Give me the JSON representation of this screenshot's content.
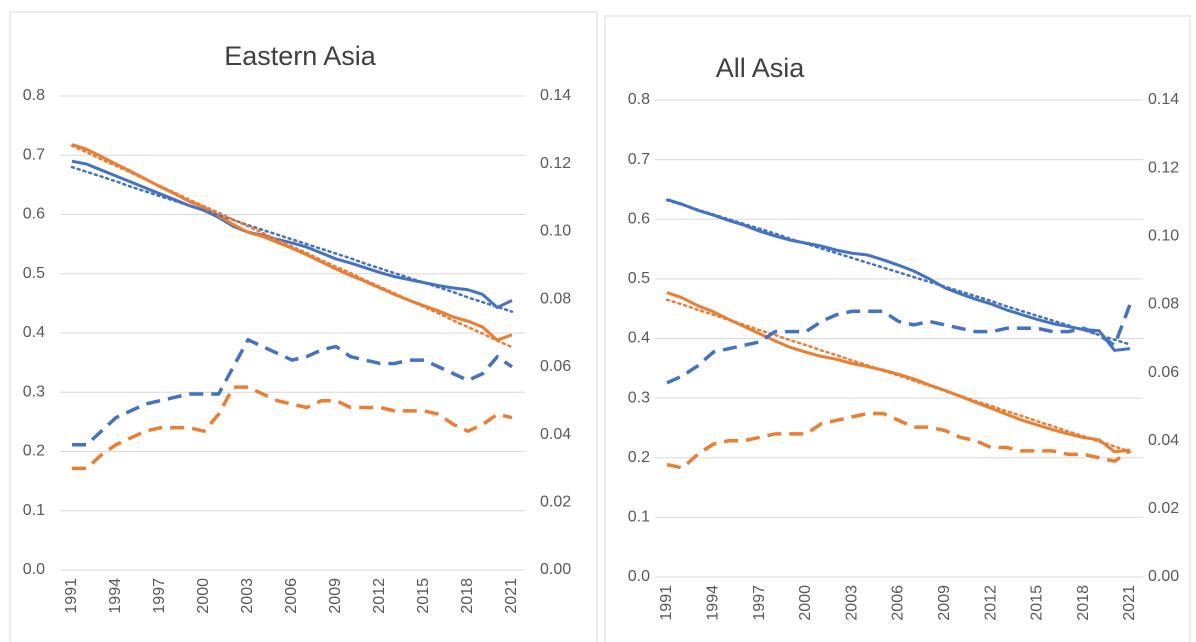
{
  "chart_data": [
    {
      "type": "line",
      "title": "Eastern Asia",
      "x": [
        1991,
        1992,
        1993,
        1994,
        1995,
        1996,
        1997,
        1998,
        1999,
        2000,
        2001,
        2002,
        2003,
        2004,
        2005,
        2006,
        2007,
        2008,
        2009,
        2010,
        2011,
        2012,
        2013,
        2014,
        2015,
        2016,
        2017,
        2018,
        2019,
        2020,
        2021
      ],
      "xlim": [
        1991,
        2021
      ],
      "xticks": [
        1991,
        1994,
        1997,
        2000,
        2003,
        2006,
        2009,
        2012,
        2015,
        2018,
        2021
      ],
      "ylim": [
        0,
        0.8
      ],
      "yticks": [
        {
          "value": 0,
          "label": "0.0"
        },
        0.1,
        0.2,
        0.3,
        0.4,
        0.5,
        0.6,
        0.7,
        0.8
      ],
      "y2lim": [
        0,
        0.14
      ],
      "y2ticks": [
        {
          "value": 0,
          "label": "0.00"
        },
        0.02,
        0.04,
        0.06,
        0.08,
        {
          "value": 0.1,
          "label": "0.10"
        },
        0.12,
        0.14
      ],
      "grid": true,
      "series": [
        {
          "color": "#4472c4",
          "style": "solid",
          "values": [
            0.69,
            0.685,
            0.675,
            0.665,
            0.655,
            0.645,
            0.635,
            0.625,
            0.615,
            0.607,
            0.595,
            0.58,
            0.57,
            0.565,
            0.558,
            0.552,
            0.545,
            0.535,
            0.525,
            0.518,
            0.51,
            0.502,
            0.495,
            0.49,
            0.485,
            0.48,
            0.476,
            0.473,
            0.465,
            0.443,
            0.455
          ]
        },
        {
          "color": "#ed7d31",
          "style": "solid",
          "values": [
            0.718,
            0.71,
            0.698,
            0.685,
            0.673,
            0.66,
            0.647,
            0.635,
            0.622,
            0.612,
            0.598,
            0.583,
            0.57,
            0.563,
            0.553,
            0.543,
            0.532,
            0.52,
            0.508,
            0.497,
            0.487,
            0.476,
            0.465,
            0.455,
            0.446,
            0.437,
            0.427,
            0.42,
            0.41,
            0.388,
            0.397
          ]
        },
        {
          "color": "#4472c4",
          "style": "dotted",
          "values": [
            0.68,
            0.672,
            0.664,
            0.656,
            0.647,
            0.639,
            0.631,
            0.623,
            0.615,
            0.607,
            0.599,
            0.591,
            0.582,
            0.574,
            0.566,
            0.558,
            0.55,
            0.542,
            0.534,
            0.526,
            0.517,
            0.509,
            0.501,
            0.493,
            0.485,
            0.477,
            0.469,
            0.46,
            0.452,
            0.444,
            0.436
          ]
        },
        {
          "color": "#ed7d31",
          "style": "dotted",
          "values": [
            0.716,
            0.705,
            0.693,
            0.682,
            0.671,
            0.659,
            0.648,
            0.637,
            0.625,
            0.614,
            0.603,
            0.591,
            0.58,
            0.569,
            0.557,
            0.546,
            0.535,
            0.523,
            0.512,
            0.501,
            0.489,
            0.478,
            0.467,
            0.455,
            0.444,
            0.433,
            0.421,
            0.41,
            0.399,
            0.387,
            0.376
          ]
        },
        {
          "color": "#4472c4",
          "style": "dashed",
          "axis": "y2",
          "values": [
            0.037,
            0.037,
            0.041,
            0.045,
            0.047,
            0.049,
            0.05,
            0.051,
            0.052,
            0.052,
            0.052,
            0.06,
            0.068,
            0.066,
            0.064,
            0.062,
            0.063,
            0.065,
            0.066,
            0.063,
            0.062,
            0.061,
            0.061,
            0.062,
            0.062,
            0.06,
            0.058,
            0.056,
            0.058,
            0.063,
            0.06
          ]
        },
        {
          "color": "#ed7d31",
          "style": "dashed",
          "axis": "y2",
          "values": [
            0.03,
            0.03,
            0.034,
            0.037,
            0.039,
            0.041,
            0.042,
            0.042,
            0.042,
            0.041,
            0.046,
            0.054,
            0.054,
            0.052,
            0.05,
            0.049,
            0.048,
            0.05,
            0.05,
            0.048,
            0.048,
            0.048,
            0.047,
            0.047,
            0.047,
            0.046,
            0.043,
            0.041,
            0.043,
            0.046,
            0.045
          ]
        }
      ]
    },
    {
      "type": "line",
      "title": "All Asia",
      "x": [
        1991,
        1992,
        1993,
        1994,
        1995,
        1996,
        1997,
        1998,
        1999,
        2000,
        2001,
        2002,
        2003,
        2004,
        2005,
        2006,
        2007,
        2008,
        2009,
        2010,
        2011,
        2012,
        2013,
        2014,
        2015,
        2016,
        2017,
        2018,
        2019,
        2020,
        2021
      ],
      "xlim": [
        1991,
        2021
      ],
      "xticks": [
        1991,
        1994,
        1997,
        2000,
        2003,
        2006,
        2009,
        2012,
        2015,
        2018,
        2021
      ],
      "ylim": [
        0,
        0.8
      ],
      "yticks": [
        {
          "value": 0,
          "label": "0.0"
        },
        0.1,
        0.2,
        0.3,
        0.4,
        0.5,
        0.6,
        0.7,
        0.8
      ],
      "y2lim": [
        0,
        0.14
      ],
      "y2ticks": [
        {
          "value": 0,
          "label": "0.00"
        },
        0.02,
        0.04,
        0.06,
        0.08,
        {
          "value": 0.1,
          "label": "0.10"
        },
        0.12,
        0.14
      ],
      "grid": true,
      "series": [
        {
          "color": "#4472c4",
          "style": "solid",
          "values": [
            0.633,
            0.625,
            0.615,
            0.607,
            0.598,
            0.59,
            0.58,
            0.572,
            0.565,
            0.56,
            0.555,
            0.548,
            0.543,
            0.54,
            0.532,
            0.523,
            0.513,
            0.5,
            0.485,
            0.475,
            0.466,
            0.458,
            0.448,
            0.44,
            0.432,
            0.425,
            0.42,
            0.415,
            0.413,
            0.38,
            0.383
          ]
        },
        {
          "color": "#ed7d31",
          "style": "solid",
          "values": [
            0.477,
            0.468,
            0.455,
            0.445,
            0.432,
            0.42,
            0.408,
            0.396,
            0.385,
            0.377,
            0.37,
            0.365,
            0.358,
            0.353,
            0.347,
            0.34,
            0.332,
            0.322,
            0.313,
            0.303,
            0.293,
            0.283,
            0.273,
            0.263,
            0.255,
            0.247,
            0.24,
            0.234,
            0.23,
            0.21,
            0.213
          ]
        },
        {
          "color": "#4472c4",
          "style": "dotted",
          "values": [
            0.632,
            0.624,
            0.616,
            0.608,
            0.6,
            0.592,
            0.584,
            0.576,
            0.567,
            0.559,
            0.551,
            0.543,
            0.535,
            0.527,
            0.519,
            0.511,
            0.503,
            0.495,
            0.487,
            0.479,
            0.471,
            0.463,
            0.454,
            0.446,
            0.438,
            0.43,
            0.422,
            0.414,
            0.406,
            0.398,
            0.39
          ]
        },
        {
          "color": "#ed7d31",
          "style": "dotted",
          "values": [
            0.465,
            0.457,
            0.448,
            0.44,
            0.431,
            0.423,
            0.414,
            0.406,
            0.397,
            0.389,
            0.38,
            0.372,
            0.363,
            0.355,
            0.346,
            0.338,
            0.329,
            0.321,
            0.312,
            0.304,
            0.295,
            0.287,
            0.278,
            0.27,
            0.261,
            0.253,
            0.244,
            0.236,
            0.227,
            0.219,
            0.21
          ]
        },
        {
          "color": "#4472c4",
          "style": "dashed",
          "axis": "y2",
          "values": [
            0.057,
            0.059,
            0.062,
            0.066,
            0.067,
            0.068,
            0.069,
            0.072,
            0.072,
            0.072,
            0.075,
            0.077,
            0.078,
            0.078,
            0.078,
            0.075,
            0.074,
            0.075,
            0.074,
            0.073,
            0.072,
            0.072,
            0.073,
            0.073,
            0.073,
            0.072,
            0.072,
            0.073,
            0.071,
            0.068,
            0.08
          ]
        },
        {
          "color": "#ed7d31",
          "style": "dashed",
          "axis": "y2",
          "values": [
            0.033,
            0.032,
            0.036,
            0.039,
            0.04,
            0.04,
            0.041,
            0.042,
            0.042,
            0.042,
            0.045,
            0.046,
            0.047,
            0.048,
            0.048,
            0.046,
            0.044,
            0.044,
            0.043,
            0.041,
            0.04,
            0.038,
            0.038,
            0.037,
            0.037,
            0.037,
            0.036,
            0.036,
            0.035,
            0.034,
            0.037
          ]
        }
      ]
    }
  ]
}
